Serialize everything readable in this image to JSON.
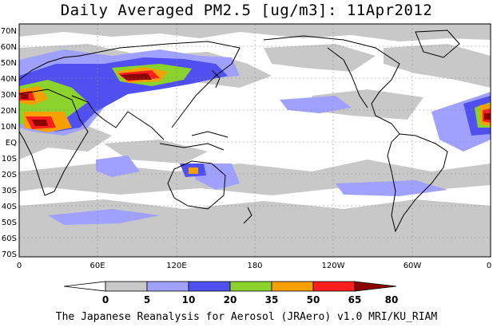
{
  "title": "Daily Averaged PM2.5 [ug/m3]: 11Apr2012",
  "footer": "The Japanese Reanalysis for Aerosol (JRAero) v1.0 MRI/KU_RIAM",
  "lat_labels": [
    "70N",
    "60N",
    "50N",
    "40N",
    "30N",
    "20N",
    "10N",
    "EQ",
    "10S",
    "20S",
    "30S",
    "40S",
    "50S",
    "60S",
    "70S"
  ],
  "lon_labels": [
    "0",
    "60E",
    "120E",
    "180",
    "120W",
    "60W",
    "0"
  ],
  "colorbar": {
    "labels": [
      "0",
      "5",
      "10",
      "20",
      "35",
      "50",
      "65",
      "80"
    ],
    "colors": [
      "#ffffff",
      "#c8c8c8",
      "#a0a0ff",
      "#5050f0",
      "#8cd22d",
      "#f5a000",
      "#ff1e1e",
      "#8c0000"
    ]
  }
}
